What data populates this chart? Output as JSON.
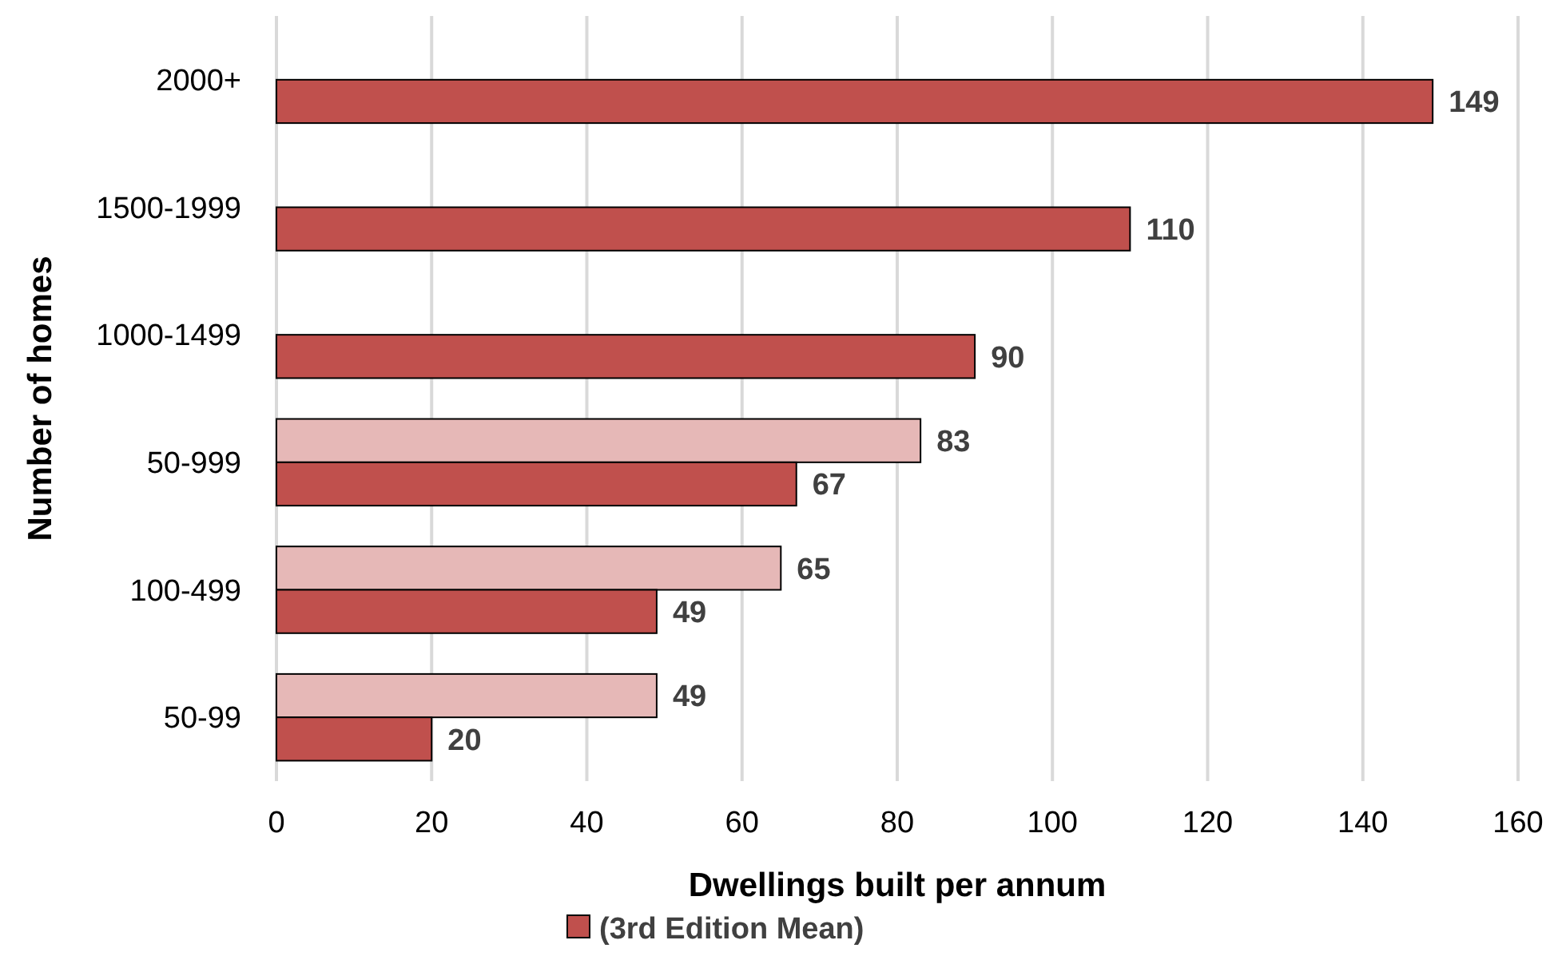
{
  "chart_data": {
    "type": "bar",
    "orientation": "horizontal",
    "xlabel": "Dwellings built per annum",
    "ylabel": "Number of homes",
    "categories": [
      "2000+",
      "1500-1999",
      "1000-1499",
      "50-999",
      "100-499",
      "50-99"
    ],
    "series": [
      {
        "color": "#e6b8b7",
        "values": [
          null,
          null,
          null,
          83,
          65,
          49
        ]
      },
      {
        "name": "(3rd Edition Mean)",
        "color": "#c0504d",
        "values": [
          149,
          110,
          90,
          67,
          49,
          20
        ]
      }
    ],
    "xlim": [
      0,
      160
    ],
    "xticks": [
      0,
      20,
      40,
      60,
      80,
      100,
      120,
      140,
      160
    ],
    "grid": "x",
    "data_labels": true,
    "legend": "bottom"
  }
}
